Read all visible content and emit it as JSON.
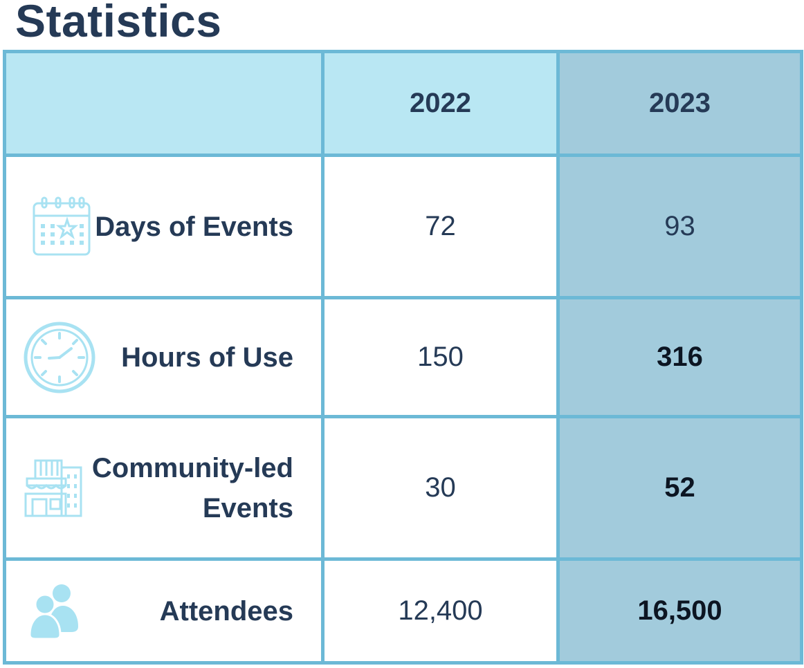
{
  "page": {
    "title": "Statistics"
  },
  "table": {
    "headers": [
      "",
      "2022",
      "2023"
    ],
    "rows": [
      {
        "label": "Days of Events",
        "icon": "calendar-icon",
        "v2022": "72",
        "v2023": "93"
      },
      {
        "label": "Hours of Use",
        "icon": "clock-icon",
        "v2022": "150",
        "v2023": "316"
      },
      {
        "label": "Community-led Events",
        "icon": "building-icon",
        "v2022": "30",
        "v2023": "52"
      },
      {
        "label": "Attendees",
        "icon": "people-icon",
        "v2022": "12,400",
        "v2023": "16,500"
      }
    ]
  },
  "colors": {
    "text": "#253a56",
    "border": "#6cb9d6",
    "header_bg": "#b9e7f3",
    "highlight_col_bg": "#a2cbdc",
    "icon": "#a8e2f2"
  }
}
